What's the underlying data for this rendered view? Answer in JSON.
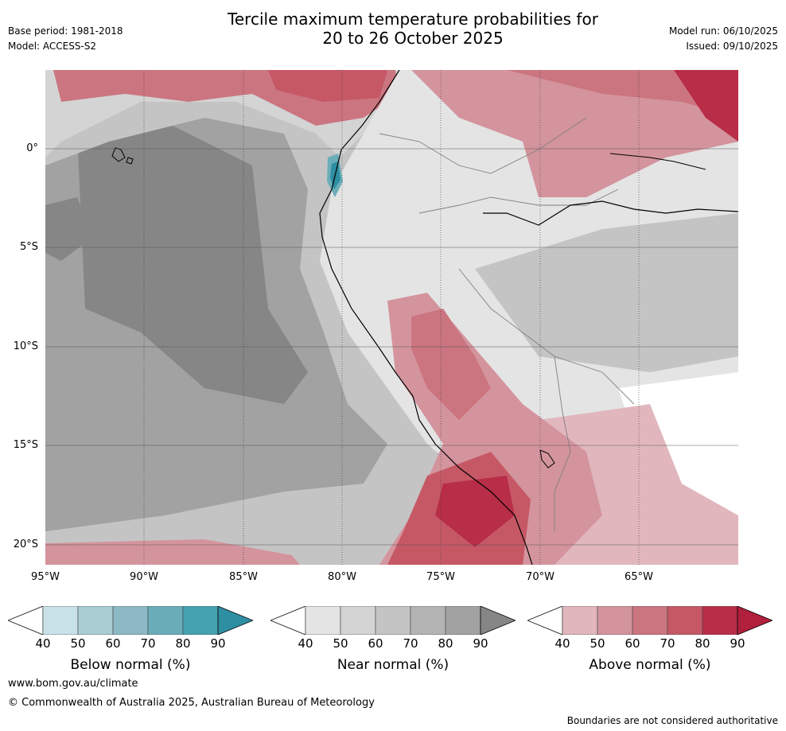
{
  "title_line1": "Tercile maximum temperature probabilities for",
  "title_line2": "20 to 26 October 2025",
  "meta_left": [
    "Base period: 1981-2018",
    "Model: ACCESS-S2"
  ],
  "meta_right": [
    "Model run: 06/10/2025",
    "Issued: 09/10/2025"
  ],
  "lat_labels": [
    "0°",
    "5°S",
    "10°S",
    "15°S",
    "20°S"
  ],
  "lon_labels": [
    "95°W",
    "90°W",
    "85°W",
    "80°W",
    "75°W",
    "70°W",
    "65°W"
  ],
  "colorbars": [
    {
      "label": "Below normal (%)",
      "ticks": [
        "40",
        "50",
        "60",
        "70",
        "80",
        "90"
      ],
      "colors": [
        "#ffffff",
        "#c8e2e7",
        "#a9cdd3",
        "#8cb9c5",
        "#6aadb9",
        "#45a2b0",
        "#2e8ea2"
      ]
    },
    {
      "label": "Near normal (%)",
      "ticks": [
        "40",
        "50",
        "60",
        "70",
        "80",
        "90"
      ],
      "colors": [
        "#ffffff",
        "#e4e4e4",
        "#d4d4d4",
        "#c4c4c4",
        "#b4b4b4",
        "#a2a2a2",
        "#868686"
      ]
    },
    {
      "label": "Above normal (%)",
      "ticks": [
        "40",
        "50",
        "60",
        "70",
        "80",
        "90"
      ],
      "colors": [
        "#ffffff",
        "#e1b7bd",
        "#d4949d",
        "#cb7580",
        "#c65866",
        "#b82d47",
        "#b01f3b"
      ]
    }
  ],
  "footer_url": "www.bom.gov.au/climate",
  "footer_copyright": "© Commonwealth of Australia 2025, Australian Bureau of Meteorology",
  "disclaimer": "Boundaries are not considered authoritative"
}
